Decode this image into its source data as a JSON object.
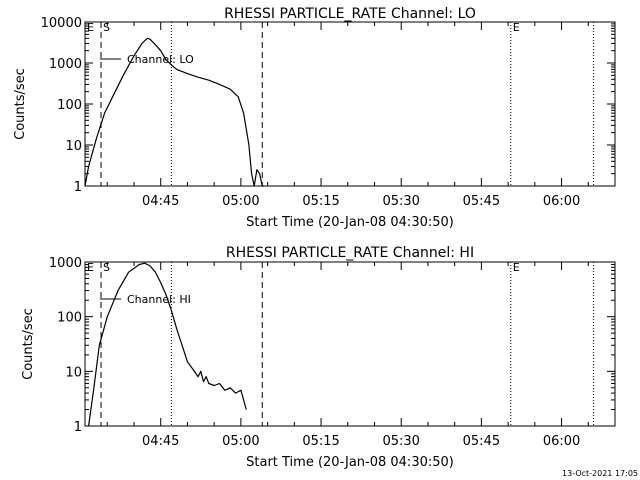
{
  "footer_timestamp": "13-Oct-2021 17:05",
  "chart_data": [
    {
      "type": "line",
      "title": "RHESSI PARTICLE_RATE Channel: LO",
      "xlabel": "Start Time (20-Jan-08 04:30:50)",
      "ylabel": "Counts/sec",
      "y_scale": "log",
      "ylim": [
        1,
        10000
      ],
      "y_tick_labels": [
        "1",
        "10",
        "100",
        "1000",
        "10000"
      ],
      "y_tick_values": [
        1,
        10,
        100,
        1000,
        10000
      ],
      "x_tick_labels": [
        "04:45",
        "05:00",
        "05:15",
        "05:30",
        "05:45",
        "06:00"
      ],
      "x_tick_values": [
        "04:45",
        "05:00",
        "05:15",
        "05:30",
        "05:45",
        "06:00"
      ],
      "xlim": [
        "04:30:50",
        "06:10:00"
      ],
      "legend": {
        "label": "Channel: LO",
        "placement": "top-left"
      },
      "markers": [
        {
          "label": "E",
          "time": "04:30:50",
          "style": "dashed"
        },
        {
          "label": "S",
          "time": "04:33:50",
          "style": "dashed"
        },
        {
          "label": "",
          "time": "04:47:00",
          "style": "dotted"
        },
        {
          "label": "",
          "time": "05:04:00",
          "style": "dashed"
        },
        {
          "label": "E",
          "time": "05:50:30",
          "style": "dotted"
        },
        {
          "label": "",
          "time": "06:06:00",
          "style": "dotted"
        }
      ],
      "series": [
        {
          "name": "Channel: LO",
          "x": [
            "04:30:50",
            "04:31:30",
            "04:33:00",
            "04:34:30",
            "04:36:00",
            "04:38:00",
            "04:40:00",
            "04:41:30",
            "04:42:30",
            "04:43:00",
            "04:44:00",
            "04:45:00",
            "04:46:00",
            "04:47:00",
            "04:48:00",
            "04:50:00",
            "04:52:00",
            "04:54:00",
            "04:56:00",
            "04:58:00",
            "04:59:30",
            "05:00:30",
            "05:01:30",
            "05:02:00",
            "05:02:30",
            "05:03:00",
            "05:03:30",
            "05:04:00",
            "05:04:20"
          ],
          "y": [
            1,
            3,
            15,
            60,
            150,
            500,
            1500,
            3000,
            4000,
            3800,
            2800,
            2000,
            1200,
            900,
            700,
            550,
            450,
            380,
            300,
            230,
            150,
            60,
            10,
            2,
            1,
            2.5,
            2,
            1,
            1
          ]
        }
      ]
    },
    {
      "type": "line",
      "title": "RHESSI PARTICLE_RATE Channel: HI",
      "xlabel": "Start Time (20-Jan-08 04:30:50)",
      "ylabel": "Counts/sec",
      "y_scale": "log",
      "ylim": [
        1,
        1000
      ],
      "y_tick_labels": [
        "1",
        "10",
        "100",
        "1000"
      ],
      "y_tick_values": [
        1,
        10,
        100,
        1000
      ],
      "x_tick_labels": [
        "04:45",
        "05:00",
        "05:15",
        "05:30",
        "05:45",
        "06:00"
      ],
      "x_tick_values": [
        "04:45",
        "05:00",
        "05:15",
        "05:30",
        "05:45",
        "06:00"
      ],
      "xlim": [
        "04:30:50",
        "06:10:00"
      ],
      "legend": {
        "label": "Channel: HI",
        "placement": "top-left"
      },
      "markers": [
        {
          "label": "E",
          "time": "04:30:50",
          "style": "dashed"
        },
        {
          "label": "S",
          "time": "04:33:50",
          "style": "dashed"
        },
        {
          "label": "",
          "time": "04:47:00",
          "style": "dotted"
        },
        {
          "label": "",
          "time": "05:04:00",
          "style": "dashed"
        },
        {
          "label": "E",
          "time": "05:50:30",
          "style": "dotted"
        },
        {
          "label": "",
          "time": "06:06:00",
          "style": "dotted"
        }
      ],
      "series": [
        {
          "name": "Channel: HI",
          "x": [
            "04:31:30",
            "04:32:30",
            "04:33:30",
            "04:35:00",
            "04:37:00",
            "04:39:00",
            "04:41:00",
            "04:42:00",
            "04:43:00",
            "04:44:00",
            "04:45:00",
            "04:46:00",
            "04:47:00",
            "04:48:00",
            "04:49:00",
            "04:50:00",
            "04:51:00",
            "04:52:00",
            "04:52:30",
            "04:53:00",
            "04:53:30",
            "04:54:00",
            "04:55:00",
            "04:56:00",
            "04:57:00",
            "04:58:00",
            "04:59:00",
            "05:00:00",
            "05:00:30",
            "05:01:00"
          ],
          "y": [
            1,
            5,
            30,
            100,
            300,
            650,
            900,
            950,
            850,
            650,
            420,
            250,
            130,
            60,
            30,
            15,
            11,
            8,
            10,
            6.5,
            8,
            6,
            5.5,
            6,
            4.5,
            5,
            4,
            4.5,
            3,
            2
          ]
        }
      ]
    }
  ]
}
